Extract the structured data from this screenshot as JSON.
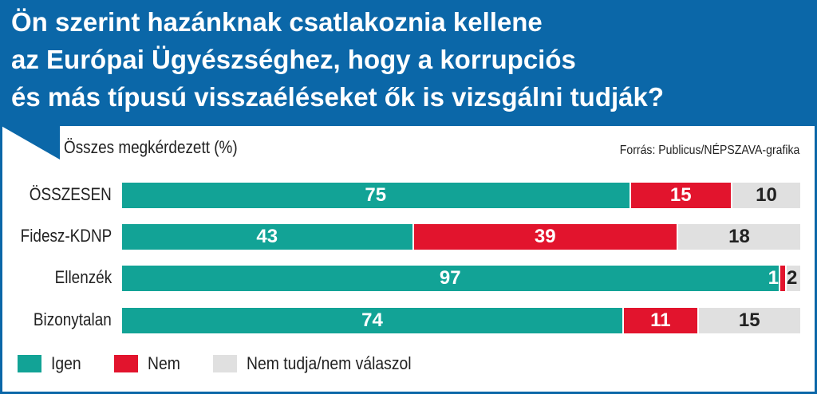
{
  "title": "Ön szerint hazánknak csatlakoznia kellene az Európai Ügyészséghez, hogy a korrupciós és más típusú visszaéléseket ők is vizsgálni tudják?",
  "title_lines": [
    "Ön szerint hazánknak csatlakoznia kellene",
    "az Európai Ügyészséghez, hogy a korrupciós",
    "és más típusú visszaéléseket ők is vizsgálni tudják?"
  ],
  "subtitle": "Összes megkérdezett (%)",
  "source": "Forrás: Publicus/NÉPSZAVA-grafika",
  "colors": {
    "header": "#0b67a8",
    "igen": "#12a396",
    "nem": "#e2142d",
    "nemtudja": "#e0e0e0"
  },
  "chart_data": {
    "type": "bar",
    "orientation": "horizontal",
    "stacked": true,
    "categories": [
      "ÖSSZESEN",
      "Fidesz-KDNP",
      "Ellenzék",
      "Bizonytalan"
    ],
    "series": [
      {
        "name": "Igen",
        "values": [
          75,
          43,
          97,
          74
        ]
      },
      {
        "name": "Nem",
        "values": [
          15,
          39,
          1,
          11
        ]
      },
      {
        "name": "Nem tudja/nem válaszol",
        "values": [
          10,
          18,
          2,
          15
        ]
      }
    ],
    "xlim": [
      0,
      100
    ],
    "grid": false,
    "legend": "bottom-left"
  }
}
